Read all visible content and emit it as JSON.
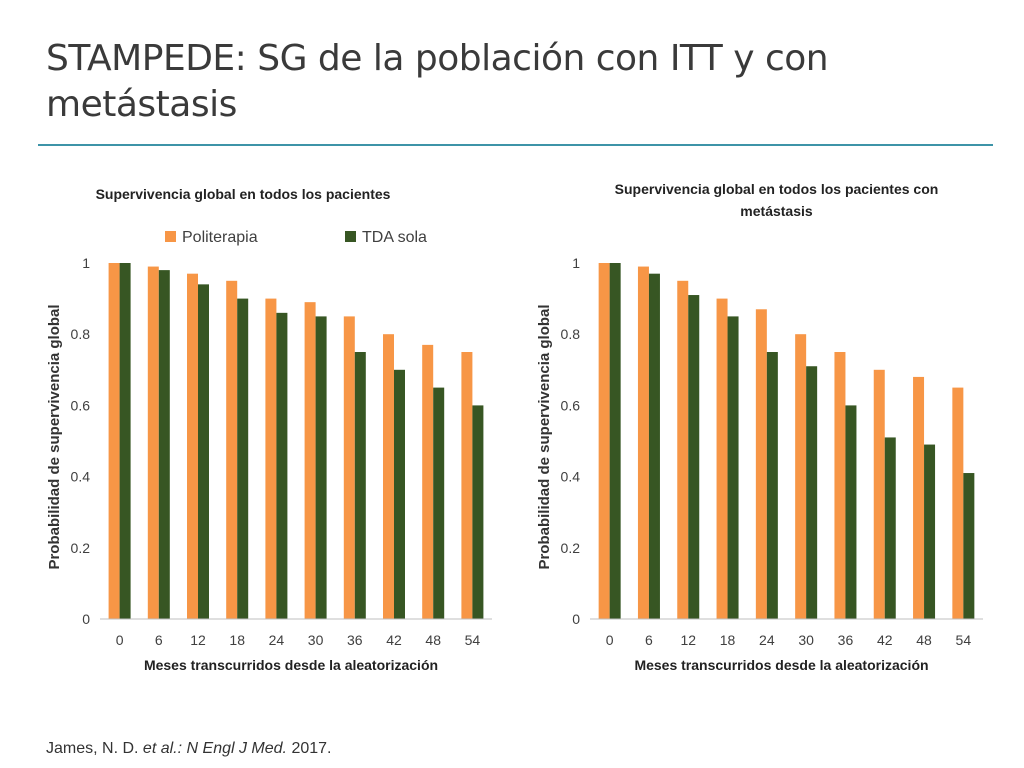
{
  "slide": {
    "title_line1": "STAMPEDE: SG de la población con ITT y con",
    "title_line2": "metástasis"
  },
  "citation": {
    "authors": "James, N. D.",
    "etal": "et al.:",
    "journal": "N Engl J Med.",
    "year": "2017."
  },
  "colors": {
    "Politerapia": "#f79646",
    "TDA sola": "#375623",
    "rule": "#3d94a8"
  },
  "chart_data": [
    {
      "type": "bar",
      "title": "Supervivencia global en todos los pacientes",
      "xlabel": "Meses transcurridos desde la aleatorización",
      "ylabel": "Probabilidad de supervivencia global",
      "categories": [
        "0",
        "6",
        "12",
        "18",
        "24",
        "30",
        "36",
        "42",
        "48",
        "54"
      ],
      "yticks": [
        "0",
        "0.2",
        "0.4",
        "0.6",
        "0.8",
        "1"
      ],
      "ylim": [
        0,
        1
      ],
      "legend": "top",
      "series": [
        {
          "name": "Politerapia",
          "values": [
            1.0,
            0.99,
            0.97,
            0.95,
            0.9,
            0.89,
            0.85,
            0.8,
            0.77,
            0.75
          ]
        },
        {
          "name": "TDA sola",
          "values": [
            1.0,
            0.98,
            0.94,
            0.9,
            0.86,
            0.85,
            0.75,
            0.7,
            0.65,
            0.6
          ]
        }
      ]
    },
    {
      "type": "bar",
      "title": "Supervivencia global en todos los pacientes con metástasis",
      "title_lines": [
        "Supervivencia global en todos los pacientes con",
        "metástasis"
      ],
      "xlabel": "Meses transcurridos desde la aleatorización",
      "ylabel": "Probabilidad de supervivencia global",
      "categories": [
        "0",
        "6",
        "12",
        "18",
        "24",
        "30",
        "36",
        "42",
        "48",
        "54"
      ],
      "yticks": [
        "0",
        "0.2",
        "0.4",
        "0.6",
        "0.8",
        "1"
      ],
      "ylim": [
        0,
        1
      ],
      "legend": "none",
      "series": [
        {
          "name": "Politerapia",
          "values": [
            1.0,
            0.99,
            0.95,
            0.9,
            0.87,
            0.8,
            0.75,
            0.7,
            0.68,
            0.65
          ]
        },
        {
          "name": "TDA sola",
          "values": [
            1.0,
            0.97,
            0.91,
            0.85,
            0.75,
            0.71,
            0.6,
            0.51,
            0.49,
            0.41
          ]
        }
      ]
    }
  ]
}
